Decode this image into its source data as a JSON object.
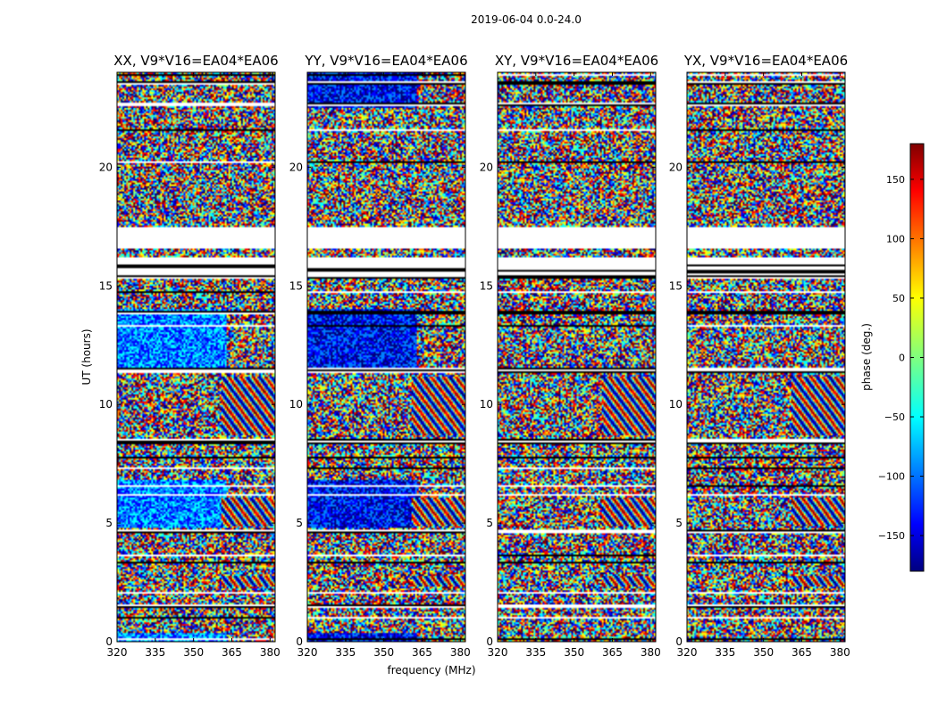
{
  "figure": {
    "suptitle": "2019-06-04 0.0-24.0",
    "xlabel": "frequency (MHz)",
    "ylabel": "UT (hours)"
  },
  "chart_data": {
    "type": "heatmap",
    "x": {
      "label": "frequency (MHz)",
      "range": [
        320,
        382
      ],
      "ticks": [
        320,
        335,
        350,
        365,
        380
      ],
      "unit": "MHz"
    },
    "y": {
      "label": "UT (hours)",
      "range": [
        0,
        24
      ],
      "ticks": [
        0,
        5,
        10,
        15,
        20
      ],
      "unit": "hours"
    },
    "colorbar": {
      "label": "phase (deg.)",
      "range": [
        -180,
        180
      ],
      "ticks": [
        150,
        100,
        50,
        0,
        -50,
        -100,
        -150
      ],
      "tick_labels": [
        "150",
        "100",
        "50",
        "0",
        "−50",
        "−100",
        "−150"
      ],
      "colormap": [
        "#00007f",
        "#0000ff",
        "#007fff",
        "#00ffff",
        "#7fff7f",
        "#ffff00",
        "#ff7f00",
        "#ff0000",
        "#7f0000"
      ]
    },
    "panels": [
      {
        "title": "XX, V9*V16=EA04*EA06",
        "bias": "blue-ish in low band"
      },
      {
        "title": "YY, V9*V16=EA04*EA06",
        "bias": "dark blue in low band"
      },
      {
        "title": "XY, V9*V16=EA04*EA06",
        "bias": "uniform noise"
      },
      {
        "title": "YX, V9*V16=EA04*EA06",
        "bias": "uniform noise"
      }
    ],
    "flagged_ut_hours": [
      [
        0.1,
        0.15
      ],
      [
        0.95,
        1.05
      ],
      [
        1.45,
        1.55
      ],
      [
        2.0,
        2.1
      ],
      [
        3.3,
        3.4
      ],
      [
        3.6,
        3.7
      ],
      [
        4.6,
        4.7
      ],
      [
        6.15,
        6.25
      ],
      [
        6.55,
        6.6
      ],
      [
        7.3,
        7.35
      ],
      [
        7.7,
        7.8
      ],
      [
        8.3,
        8.55
      ],
      [
        9.35,
        9.4
      ],
      [
        11.3,
        11.55
      ],
      [
        12.5,
        12.55
      ],
      [
        13.3,
        13.35
      ],
      [
        13.8,
        13.95
      ],
      [
        14.7,
        14.8
      ],
      [
        15.3,
        15.8
      ],
      [
        15.8,
        16.2
      ],
      [
        17.3,
        17.5
      ],
      [
        17.5,
        17.5
      ],
      [
        18.95,
        19.0
      ],
      [
        20.2,
        20.25
      ],
      [
        21.5,
        21.6
      ],
      [
        22.6,
        22.7
      ],
      [
        23.45,
        23.6
      ],
      [
        23.85,
        23.9
      ]
    ],
    "flagged_ut_blocks": [
      [
        15.9,
        16.2
      ],
      [
        16.55,
        17.45
      ]
    ],
    "fringe_region_mhz": [
      361,
      382
    ],
    "fringe_ut_hours": [
      [
        8.7,
        11.2
      ],
      [
        4.9,
        6.1
      ],
      [
        2.3,
        2.8
      ]
    ]
  }
}
